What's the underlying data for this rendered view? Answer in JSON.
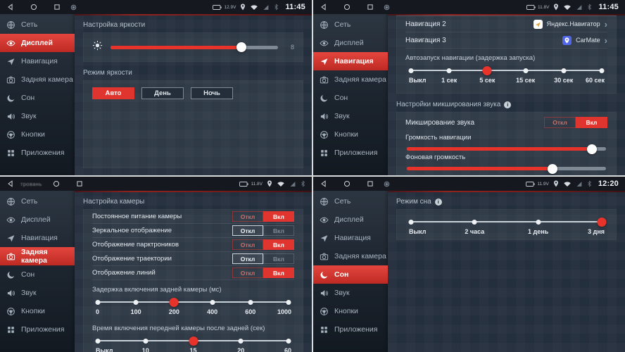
{
  "accent": "#e0352e",
  "toggle_labels": {
    "off": "Откл",
    "on": "Вкл"
  },
  "sidebar": {
    "items": [
      {
        "id": "network",
        "label": "Сеть",
        "icon": "globe-icon"
      },
      {
        "id": "display",
        "label": "Дисплей",
        "icon": "eye-icon"
      },
      {
        "id": "navigation",
        "label": "Навигация",
        "icon": "send-icon"
      },
      {
        "id": "rear-camera",
        "label": "Задняя камера",
        "icon": "camera-icon"
      },
      {
        "id": "sleep",
        "label": "Сон",
        "icon": "moon-icon"
      },
      {
        "id": "sound",
        "label": "Звук",
        "icon": "speaker-icon"
      },
      {
        "id": "buttons",
        "label": "Кнопки",
        "icon": "steering-wheel-icon"
      },
      {
        "id": "apps",
        "label": "Приложения",
        "icon": "apps-grid-icon"
      }
    ]
  },
  "quadrants": {
    "display": {
      "selected_menu": "Дисплей",
      "status": {
        "voltage": "12.9V",
        "time": "11:45"
      },
      "brightness": {
        "label": "Настройка яркости",
        "percent": 78,
        "value": "8"
      },
      "mode": {
        "label": "Режим яркости",
        "options": [
          "Авто",
          "День",
          "Ночь"
        ],
        "selected": "Авто"
      }
    },
    "navigation": {
      "selected_menu": "Навигация",
      "status": {
        "voltage": "11.8V",
        "time": "11:45"
      },
      "nav2": {
        "label": "Навигация 2",
        "app": "Яндекс.Навигатор"
      },
      "nav3": {
        "label": "Навигация 3",
        "app": "CarMate"
      },
      "autostart": {
        "label": "Автозапуск навигации (задержка запуска)",
        "options": [
          "Выкл",
          "1 сек",
          "5 сек",
          "15 сек",
          "30 сек",
          "60 сек"
        ],
        "selected": "5 сек"
      },
      "mixing": {
        "header": "Настройки микширования звука",
        "toggle_label": "Микширование звука",
        "state": "on"
      },
      "nav_volume": {
        "label": "Громкость навигации",
        "percent": 93
      },
      "bg_volume": {
        "label": "Фоновая громкость",
        "percent": 73
      }
    },
    "camera": {
      "selected_menu": "Задняя камера",
      "status": {
        "voltage": "11.8V",
        "watermark": "тровань"
      },
      "header": "Настройка камеры",
      "toggles": [
        {
          "label": "Постоянное питание камеры",
          "state": "on"
        },
        {
          "label": "Зеркальное отображение",
          "state": "off"
        },
        {
          "label": "Отображение парктроников",
          "state": "on"
        },
        {
          "label": "Отображение траектории",
          "state": "off"
        },
        {
          "label": "Отображение линий",
          "state": "on"
        }
      ],
      "delay": {
        "label": "Задержка включения задней камеры (мс)",
        "options": [
          "0",
          "100",
          "200",
          "400",
          "600",
          "1000"
        ],
        "selected": "200"
      },
      "front": {
        "label": "Время включения передней камеры после задней (сек)",
        "options": [
          "Выкл",
          "10",
          "15",
          "20",
          "60"
        ],
        "selected": "15"
      }
    },
    "sleep": {
      "selected_menu": "Сон",
      "status": {
        "voltage": "11.9V",
        "time": "12:20"
      },
      "mode": {
        "label": "Режим сна",
        "options": [
          "Выкл",
          "2 часа",
          "1 день",
          "3 дня"
        ],
        "selected": "3 дня"
      }
    }
  }
}
